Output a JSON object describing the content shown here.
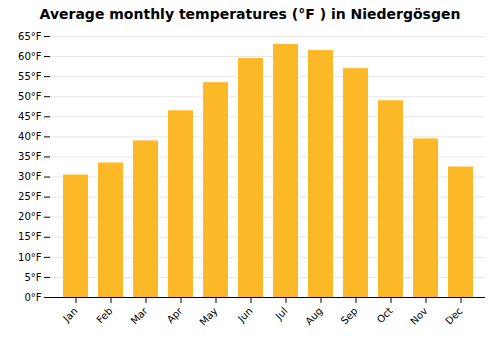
{
  "chart_data": {
    "type": "bar",
    "title": "Average monthly temperatures (°F ) in Niedergösgen",
    "categories": [
      "Jan",
      "Feb",
      "Mar",
      "Apr",
      "May",
      "Jun",
      "Jul",
      "Aug",
      "Sep",
      "Oct",
      "Nov",
      "Dec"
    ],
    "values": [
      30.5,
      33.5,
      39.0,
      46.5,
      53.5,
      59.5,
      63.0,
      61.5,
      57.0,
      49.0,
      39.5,
      32.5
    ],
    "color": "#FDB827",
    "ylim": [
      0,
      65
    ],
    "yticks": [
      {
        "value": 0,
        "label": "0°F"
      },
      {
        "value": 5,
        "label": "5°F"
      },
      {
        "value": 10,
        "label": "10°F"
      },
      {
        "value": 15,
        "label": "15°F"
      },
      {
        "value": 20,
        "label": "20°F"
      },
      {
        "value": 25,
        "label": "25°F"
      },
      {
        "value": 30,
        "label": "30°F"
      },
      {
        "value": 35,
        "label": "35°F"
      },
      {
        "value": 40,
        "label": "40°F"
      },
      {
        "value": 45,
        "label": "45°F"
      },
      {
        "value": 50,
        "label": "50°F"
      },
      {
        "value": 55,
        "label": "55°F"
      },
      {
        "value": 60,
        "label": "60°F"
      },
      {
        "value": 65,
        "label": "65°F"
      }
    ],
    "grid": true
  }
}
